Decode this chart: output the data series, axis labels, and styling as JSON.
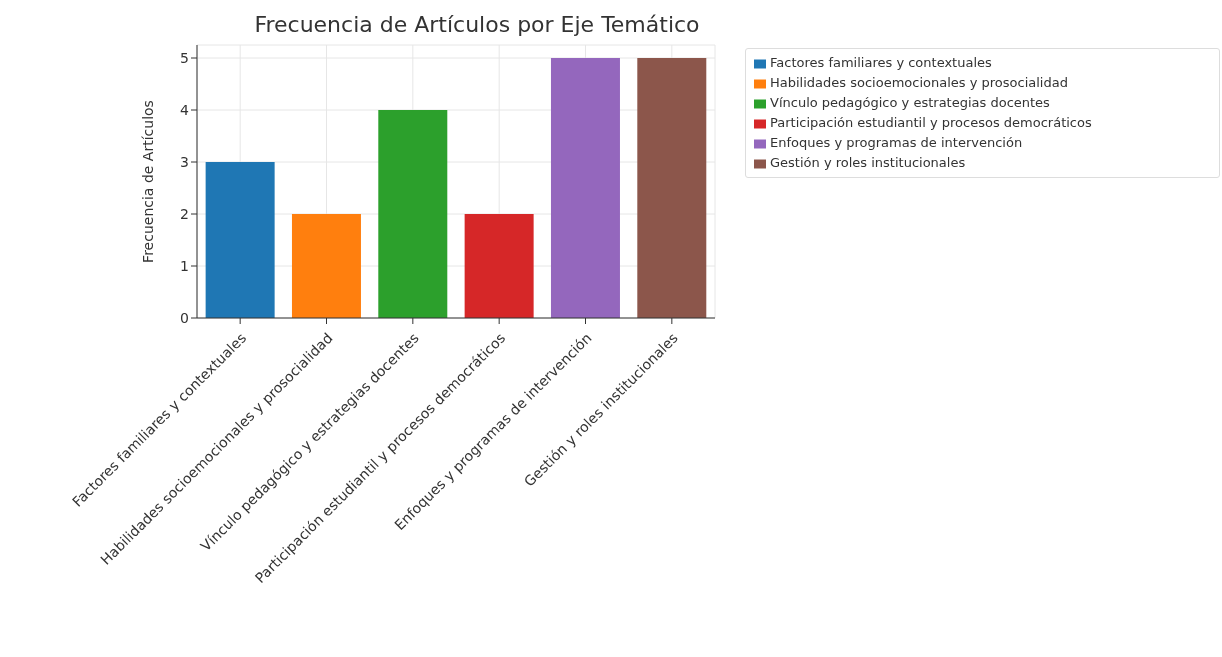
{
  "chart_data": {
    "type": "bar",
    "title": "Frecuencia de Artículos por Eje Temático",
    "ylabel": "Frecuencia de Artículos",
    "categories": [
      "Factores familiares y contextuales",
      "Habilidades socioemocionales y prosocialidad",
      "Vínculo pedagógico y estrategias docentes",
      "Participación estudiantil y procesos democráticos",
      "Enfoques y programas de intervención",
      "Gestión y roles institucionales"
    ],
    "series": [
      {
        "name": "Factores familiares y contextuales",
        "color": "#1f77b4",
        "values": [
          3,
          null,
          null,
          null,
          null,
          null
        ]
      },
      {
        "name": "Habilidades socioemocionales y prosocialidad",
        "color": "#ff7f0e",
        "values": [
          null,
          2,
          null,
          null,
          null,
          null
        ]
      },
      {
        "name": "Vínculo pedagógico y estrategias docentes",
        "color": "#2ca02c",
        "values": [
          null,
          null,
          4,
          null,
          null,
          null
        ]
      },
      {
        "name": "Participación estudiantil y procesos democráticos",
        "color": "#d62728",
        "values": [
          null,
          null,
          null,
          2,
          null,
          null
        ]
      },
      {
        "name": "Enfoques y programas de intervención",
        "color": "#9467bd",
        "values": [
          null,
          null,
          null,
          null,
          5,
          null
        ]
      },
      {
        "name": "Gestión y roles institucionales",
        "color": "#8c564b",
        "values": [
          null,
          null,
          null,
          null,
          null,
          5
        ]
      }
    ],
    "ylim": [
      0,
      5.25
    ],
    "yticks": [
      0,
      1,
      2,
      3,
      4,
      5
    ],
    "grid": true,
    "legend": "right"
  }
}
